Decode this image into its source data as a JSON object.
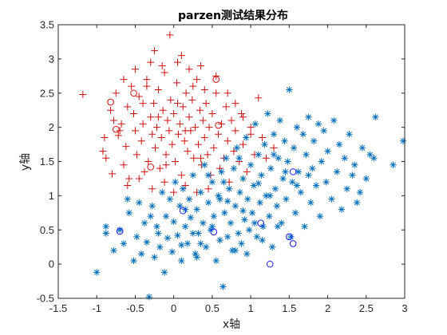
{
  "chart_data": {
    "type": "scatter",
    "title": "parzen测试结果分布",
    "xlabel": "x轴",
    "ylabel": "y轴",
    "xlim": [
      -1.5,
      3
    ],
    "ylim": [
      -0.5,
      3.5
    ],
    "xticks": [
      "-1.5",
      "-1",
      "-0.5",
      "0",
      "0.5",
      "1",
      "1.5",
      "2",
      "2.5",
      "3"
    ],
    "yticks": [
      "-0.5",
      "0",
      "0.5",
      "1",
      "1.5",
      "2",
      "2.5",
      "3",
      "3.5"
    ],
    "colors": {
      "class1": "#d01010",
      "class2": "#0a72bd",
      "misclassified_blue": "#1a1aff"
    },
    "series": [
      {
        "marker": "plus",
        "color": "#d01010",
        "points": [
          [
            -1.18,
            2.48
          ],
          [
            -0.92,
            1.65
          ],
          [
            -0.88,
            1.55
          ],
          [
            -0.8,
            1.32
          ],
          [
            -0.78,
            2.1
          ],
          [
            -0.72,
            1.88
          ],
          [
            -0.68,
            2.05
          ],
          [
            -0.65,
            1.45
          ],
          [
            -0.62,
            1.72
          ],
          [
            -0.6,
            2.3
          ],
          [
            -0.58,
            1.25
          ],
          [
            -0.55,
            2.6
          ],
          [
            -0.52,
            2.2
          ],
          [
            -0.5,
            1.95
          ],
          [
            -0.48,
            1.6
          ],
          [
            -0.45,
            2.45
          ],
          [
            -0.42,
            1.8
          ],
          [
            -0.4,
            2.05
          ],
          [
            -0.38,
            1.35
          ],
          [
            -0.35,
            2.7
          ],
          [
            -0.33,
            1.5
          ],
          [
            -0.3,
            2.15
          ],
          [
            -0.28,
            1.9
          ],
          [
            -0.26,
            2.35
          ],
          [
            -0.24,
            1.7
          ],
          [
            -0.22,
            2.0
          ],
          [
            -0.2,
            2.55
          ],
          [
            -0.18,
            1.4
          ],
          [
            -0.16,
            1.85
          ],
          [
            -0.14,
            2.25
          ],
          [
            -0.12,
            2.8
          ],
          [
            -0.1,
            1.6
          ],
          [
            -0.08,
            2.1
          ],
          [
            -0.06,
            1.95
          ],
          [
            -0.04,
            2.4
          ],
          [
            -0.02,
            1.75
          ],
          [
            0.0,
            2.2
          ],
          [
            0.02,
            1.5
          ],
          [
            0.04,
            2.65
          ],
          [
            0.06,
            1.9
          ],
          [
            0.08,
            2.05
          ],
          [
            0.1,
            1.3
          ],
          [
            0.12,
            2.3
          ],
          [
            0.14,
            1.8
          ],
          [
            0.16,
            2.5
          ],
          [
            0.18,
            1.65
          ],
          [
            0.2,
            2.15
          ],
          [
            0.22,
            1.95
          ],
          [
            0.24,
            2.4
          ],
          [
            0.26,
            1.55
          ],
          [
            0.28,
            2.0
          ],
          [
            0.3,
            2.7
          ],
          [
            0.32,
            1.75
          ],
          [
            0.34,
            2.25
          ],
          [
            0.36,
            1.45
          ],
          [
            0.38,
            2.1
          ],
          [
            0.4,
            1.85
          ],
          [
            0.42,
            2.35
          ],
          [
            0.44,
            1.6
          ],
          [
            0.46,
            2.0
          ],
          [
            0.48,
            1.3
          ],
          [
            0.5,
            2.2
          ],
          [
            0.52,
            1.7
          ],
          [
            0.55,
            2.5
          ],
          [
            0.58,
            1.9
          ],
          [
            0.6,
            1.4
          ],
          [
            0.62,
            2.05
          ],
          [
            0.65,
            1.55
          ],
          [
            0.68,
            2.3
          ],
          [
            0.7,
            1.8
          ],
          [
            0.72,
            1.2
          ],
          [
            0.75,
            2.1
          ],
          [
            0.78,
            1.65
          ],
          [
            0.8,
            1.95
          ],
          [
            0.85,
            1.5
          ],
          [
            0.88,
            2.2
          ],
          [
            0.9,
            1.75
          ],
          [
            0.95,
            1.35
          ],
          [
            1.0,
            2.0
          ],
          [
            1.05,
            1.6
          ],
          [
            1.1,
            2.43
          ],
          [
            1.15,
            1.85
          ],
          [
            1.2,
            1.55
          ],
          [
            1.3,
            1.7
          ],
          [
            -0.25,
            3.12
          ],
          [
            -0.05,
            3.35
          ],
          [
            0.05,
            2.95
          ],
          [
            -0.15,
            2.9
          ],
          [
            0.2,
            2.85
          ],
          [
            -0.35,
            2.6
          ],
          [
            -0.6,
            1.15
          ],
          [
            -0.7,
            1.95
          ],
          [
            -0.45,
            1.25
          ],
          [
            -0.28,
            1.1
          ],
          [
            -0.12,
            1.2
          ],
          [
            0.0,
            1.05
          ],
          [
            0.15,
            1.15
          ],
          [
            0.3,
            1.05
          ],
          [
            0.45,
            1.1
          ],
          [
            -0.82,
            2.25
          ],
          [
            -0.9,
            1.85
          ],
          [
            -0.5,
            2.85
          ],
          [
            -0.3,
            2.95
          ],
          [
            0.1,
            3.05
          ],
          [
            0.35,
            2.9
          ],
          [
            0.55,
            2.75
          ],
          [
            0.7,
            2.5
          ],
          [
            0.8,
            2.35
          ],
          [
            0.9,
            2.15
          ],
          [
            1.0,
            1.9
          ],
          [
            -0.75,
            2.5
          ],
          [
            -0.65,
            2.7
          ],
          [
            -0.4,
            2.35
          ],
          [
            -0.2,
            2.15
          ],
          [
            0.05,
            2.35
          ],
          [
            0.25,
            2.6
          ],
          [
            0.4,
            2.55
          ],
          [
            0.15,
            1.95
          ],
          [
            -0.1,
            1.45
          ],
          [
            0.35,
            1.55
          ]
        ]
      },
      {
        "marker": "asterisk",
        "color": "#0a72bd",
        "points": [
          [
            -1.0,
            -0.12
          ],
          [
            -0.88,
            0.55
          ],
          [
            -0.88,
            0.45
          ],
          [
            -0.78,
            0.2
          ],
          [
            -0.7,
            0.5
          ],
          [
            -0.65,
            0.3
          ],
          [
            -0.58,
            0.75
          ],
          [
            -0.52,
            0.05
          ],
          [
            -0.48,
            0.4
          ],
          [
            -0.45,
            0.9
          ],
          [
            -0.42,
            0.15
          ],
          [
            -0.38,
            0.6
          ],
          [
            -0.35,
            0.32
          ],
          [
            -0.32,
            -0.48
          ],
          [
            -0.28,
            0.85
          ],
          [
            -0.25,
            0.1
          ],
          [
            -0.22,
            0.55
          ],
          [
            -0.18,
            0.25
          ],
          [
            -0.15,
            1.05
          ],
          [
            -0.12,
            -0.12
          ],
          [
            -0.1,
            0.7
          ],
          [
            -0.08,
            0.38
          ],
          [
            -0.05,
            0.95
          ],
          [
            -0.02,
            0.18
          ],
          [
            0.0,
            0.62
          ],
          [
            0.02,
            1.2
          ],
          [
            0.05,
            0.42
          ],
          [
            0.08,
            0.85
          ],
          [
            0.1,
            0.05
          ],
          [
            0.12,
            1.1
          ],
          [
            0.15,
            0.55
          ],
          [
            0.18,
            0.3
          ],
          [
            0.2,
            0.95
          ],
          [
            0.22,
            0.68
          ],
          [
            0.25,
            1.3
          ],
          [
            0.28,
            0.15
          ],
          [
            0.3,
            0.8
          ],
          [
            0.32,
            0.45
          ],
          [
            0.35,
            1.05
          ],
          [
            0.38,
            0.6
          ],
          [
            0.4,
            1.45
          ],
          [
            0.42,
            0.25
          ],
          [
            0.45,
            0.9
          ],
          [
            0.48,
            0.5
          ],
          [
            0.5,
            1.2
          ],
          [
            0.52,
            0.7
          ],
          [
            0.55,
            0.05
          ],
          [
            0.58,
            1.0
          ],
          [
            0.6,
            0.35
          ],
          [
            0.62,
            1.35
          ],
          [
            0.64,
            -0.33
          ],
          [
            0.66,
            0.75
          ],
          [
            0.68,
            1.55
          ],
          [
            0.7,
            0.4
          ],
          [
            0.72,
            1.1
          ],
          [
            0.74,
            0.6
          ],
          [
            0.76,
            0.2
          ],
          [
            0.78,
            1.4
          ],
          [
            0.8,
            0.85
          ],
          [
            0.82,
            1.7
          ],
          [
            0.84,
            0.45
          ],
          [
            0.86,
            1.05
          ],
          [
            0.88,
            0.3
          ],
          [
            0.9,
            1.25
          ],
          [
            0.92,
            0.65
          ],
          [
            0.94,
            1.85
          ],
          [
            0.96,
            0.95
          ],
          [
            0.98,
            0.5
          ],
          [
            1.0,
            1.45
          ],
          [
            1.02,
            0.75
          ],
          [
            1.04,
            1.15
          ],
          [
            1.06,
            2.05
          ],
          [
            1.08,
            0.4
          ],
          [
            1.1,
            1.6
          ],
          [
            1.12,
            0.9
          ],
          [
            1.14,
            1.3
          ],
          [
            1.16,
            0.55
          ],
          [
            1.18,
            1.75
          ],
          [
            1.2,
            1.0
          ],
          [
            1.22,
            2.2
          ],
          [
            1.24,
            0.7
          ],
          [
            1.26,
            1.4
          ],
          [
            1.28,
            0.25
          ],
          [
            1.3,
            1.9
          ],
          [
            1.32,
            1.1
          ],
          [
            1.34,
            0.85
          ],
          [
            1.36,
            1.55
          ],
          [
            1.38,
            2.1
          ],
          [
            1.4,
            0.6
          ],
          [
            1.42,
            1.25
          ],
          [
            1.44,
            1.8
          ],
          [
            1.46,
            0.95
          ],
          [
            1.48,
            1.5
          ],
          [
            1.5,
            2.55
          ],
          [
            1.52,
            0.4
          ],
          [
            1.54,
            1.2
          ],
          [
            1.56,
            1.7
          ],
          [
            1.58,
            0.75
          ],
          [
            1.6,
            2.0
          ],
          [
            1.62,
            1.35
          ],
          [
            1.65,
            1.05
          ],
          [
            1.68,
            1.9
          ],
          [
            1.7,
            0.55
          ],
          [
            1.72,
            1.6
          ],
          [
            1.75,
            2.15
          ],
          [
            1.78,
            0.9
          ],
          [
            1.8,
            1.4
          ],
          [
            1.82,
            1.8
          ],
          [
            1.85,
            1.15
          ],
          [
            1.88,
            2.05
          ],
          [
            1.9,
            0.7
          ],
          [
            1.92,
            1.5
          ],
          [
            1.95,
            1.95
          ],
          [
            1.98,
            1.2
          ],
          [
            2.0,
            1.65
          ],
          [
            2.05,
            0.95
          ],
          [
            2.08,
            2.1
          ],
          [
            2.12,
            1.35
          ],
          [
            2.15,
            1.75
          ],
          [
            2.18,
            0.8
          ],
          [
            2.22,
            1.55
          ],
          [
            2.25,
            1.1
          ],
          [
            2.28,
            1.9
          ],
          [
            2.32,
            1.3
          ],
          [
            2.35,
            1.45
          ],
          [
            2.38,
            0.9
          ],
          [
            2.42,
            1.05
          ],
          [
            2.45,
            1.7
          ],
          [
            2.5,
            1.25
          ],
          [
            2.55,
            1.6
          ],
          [
            2.6,
            1.55
          ],
          [
            2.62,
            2.15
          ],
          [
            2.85,
            1.45
          ],
          [
            2.98,
            1.8
          ],
          [
            -0.6,
            0.95
          ],
          [
            -0.3,
            0.7
          ],
          [
            0.1,
            0.28
          ],
          [
            0.3,
            0.1
          ],
          [
            0.6,
            0.95
          ],
          [
            0.95,
            0.15
          ],
          [
            1.15,
            0.35
          ],
          [
            1.35,
            0.55
          ],
          [
            0.5,
            0.55
          ],
          [
            0.7,
            0.92
          ],
          [
            0.9,
            0.78
          ],
          [
            1.1,
            1.18
          ],
          [
            1.3,
            1.6
          ],
          [
            1.45,
            1.35
          ],
          [
            1.6,
            1.15
          ],
          [
            1.75,
            1.3
          ],
          [
            0.25,
            0.45
          ],
          [
            0.45,
            1.3
          ],
          [
            0.65,
            1.2
          ],
          [
            0.85,
            1.55
          ],
          [
            1.05,
            0.6
          ],
          [
            1.25,
            1.0
          ],
          [
            0.15,
            0.8
          ],
          [
            -0.2,
            0.45
          ],
          [
            0.35,
            0.3
          ],
          [
            0.8,
            0.2
          ]
        ]
      },
      {
        "marker": "circle",
        "color": "#d01010",
        "points": [
          [
            -0.82,
            2.37
          ],
          [
            -0.52,
            2.5
          ],
          [
            -0.3,
            1.42
          ],
          [
            0.55,
            2.7
          ],
          [
            0.58,
            2.03
          ],
          [
            -0.75,
            1.97
          ]
        ]
      },
      {
        "marker": "circle",
        "color": "#1a1aff",
        "points": [
          [
            -0.7,
            0.48
          ],
          [
            0.12,
            0.78
          ],
          [
            0.52,
            0.47
          ],
          [
            1.13,
            0.6
          ],
          [
            1.25,
            0.0
          ],
          [
            1.5,
            0.4
          ],
          [
            1.55,
            0.3
          ],
          [
            1.55,
            1.35
          ]
        ]
      }
    ]
  }
}
